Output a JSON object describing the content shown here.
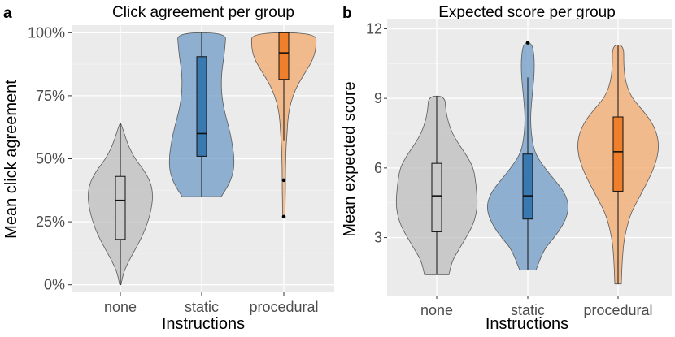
{
  "chart_data": [
    {
      "type": "violin",
      "panel_label": "a",
      "title": "Click agreement per group",
      "xlabel": "Instructions",
      "ylabel": "Mean click agreement",
      "ylim": [
        -0.03,
        1.03
      ],
      "yticks": [
        0,
        0.25,
        0.5,
        0.75,
        1.0
      ],
      "ytick_labels": [
        "0%",
        "25%",
        "50%",
        "75%",
        "100%"
      ],
      "categories": [
        "none",
        "static",
        "procedural"
      ],
      "groups": [
        {
          "name": "none",
          "color": "#bdbdbd",
          "box_color": "#c9c9c9",
          "box": {
            "min": 0.0,
            "q1": 0.18,
            "median": 0.335,
            "q3": 0.43,
            "max": 0.64
          },
          "outliers": [],
          "density": [
            [
              0.0,
              0.02
            ],
            [
              0.05,
              0.1
            ],
            [
              0.1,
              0.28
            ],
            [
              0.15,
              0.5
            ],
            [
              0.2,
              0.7
            ],
            [
              0.25,
              0.85
            ],
            [
              0.3,
              0.95
            ],
            [
              0.35,
              1.0
            ],
            [
              0.4,
              0.95
            ],
            [
              0.45,
              0.75
            ],
            [
              0.5,
              0.45
            ],
            [
              0.55,
              0.25
            ],
            [
              0.6,
              0.12
            ],
            [
              0.64,
              0.02
            ]
          ]
        },
        {
          "name": "static",
          "color": "#6f9bc6",
          "box_color": "#3a78b0",
          "box": {
            "min": 0.35,
            "q1": 0.51,
            "median": 0.6,
            "q3": 0.905,
            "max": 1.0
          },
          "outliers": [],
          "density": [
            [
              0.35,
              0.6
            ],
            [
              0.4,
              0.85
            ],
            [
              0.45,
              0.98
            ],
            [
              0.5,
              1.0
            ],
            [
              0.55,
              0.95
            ],
            [
              0.6,
              0.88
            ],
            [
              0.65,
              0.78
            ],
            [
              0.7,
              0.68
            ],
            [
              0.75,
              0.62
            ],
            [
              0.8,
              0.6
            ],
            [
              0.85,
              0.62
            ],
            [
              0.9,
              0.68
            ],
            [
              0.95,
              0.72
            ],
            [
              1.0,
              0.75
            ]
          ]
        },
        {
          "name": "procedural",
          "color": "#f2a96e",
          "box_color": "#f07f2c",
          "box": {
            "min": 0.57,
            "q1": 0.815,
            "median": 0.92,
            "q3": 1.0,
            "max": 1.0
          },
          "outliers": [
            0.415,
            0.27
          ],
          "density": [
            [
              0.27,
              0.04
            ],
            [
              0.32,
              0.04
            ],
            [
              0.38,
              0.05
            ],
            [
              0.45,
              0.05
            ],
            [
              0.5,
              0.06
            ],
            [
              0.55,
              0.07
            ],
            [
              0.6,
              0.1
            ],
            [
              0.65,
              0.12
            ],
            [
              0.7,
              0.17
            ],
            [
              0.75,
              0.28
            ],
            [
              0.8,
              0.45
            ],
            [
              0.85,
              0.7
            ],
            [
              0.9,
              0.92
            ],
            [
              0.95,
              1.0
            ],
            [
              1.0,
              0.98
            ]
          ]
        }
      ]
    },
    {
      "type": "violin",
      "panel_label": "b",
      "title": "Expected score per group",
      "xlabel": "Instructions",
      "ylabel": "Mean expected score",
      "ylim": [
        0.5,
        12.4
      ],
      "yticks": [
        3,
        6,
        9,
        12
      ],
      "ytick_labels": [
        "3",
        "6",
        "9",
        "12"
      ],
      "categories": [
        "none",
        "static",
        "procedural"
      ],
      "groups": [
        {
          "name": "none",
          "color": "#bdbdbd",
          "box_color": "#c9c9c9",
          "box": {
            "min": 1.4,
            "q1": 3.25,
            "median": 4.8,
            "q3": 6.2,
            "max": 9.1
          },
          "outliers": [],
          "density": [
            [
              1.4,
              0.3
            ],
            [
              2.0,
              0.38
            ],
            [
              2.5,
              0.55
            ],
            [
              3.0,
              0.72
            ],
            [
              3.5,
              0.88
            ],
            [
              4.0,
              0.97
            ],
            [
              4.5,
              1.0
            ],
            [
              5.0,
              0.98
            ],
            [
              5.5,
              0.95
            ],
            [
              6.0,
              0.9
            ],
            [
              6.5,
              0.75
            ],
            [
              7.0,
              0.55
            ],
            [
              7.5,
              0.38
            ],
            [
              8.0,
              0.28
            ],
            [
              8.5,
              0.22
            ],
            [
              9.1,
              0.2
            ]
          ]
        },
        {
          "name": "static",
          "color": "#6f9bc6",
          "box_color": "#3a78b0",
          "box": {
            "min": 1.6,
            "q1": 3.8,
            "median": 4.8,
            "q3": 6.6,
            "max": 9.9
          },
          "outliers": [
            11.4
          ],
          "density": [
            [
              1.6,
              0.2
            ],
            [
              2.5,
              0.4
            ],
            [
              3.0,
              0.65
            ],
            [
              3.5,
              0.85
            ],
            [
              4.0,
              0.98
            ],
            [
              4.5,
              1.0
            ],
            [
              5.0,
              0.88
            ],
            [
              5.5,
              0.65
            ],
            [
              6.0,
              0.42
            ],
            [
              6.5,
              0.22
            ],
            [
              7.0,
              0.12
            ],
            [
              8.0,
              0.06
            ],
            [
              9.0,
              0.1
            ],
            [
              10.0,
              0.16
            ],
            [
              10.8,
              0.16
            ],
            [
              11.4,
              0.1
            ]
          ]
        },
        {
          "name": "procedural",
          "color": "#f2a96e",
          "box_color": "#f07f2c",
          "box": {
            "min": 1.0,
            "q1": 5.0,
            "median": 6.7,
            "q3": 8.2,
            "max": 11.3
          },
          "outliers": [],
          "density": [
            [
              1.0,
              0.08
            ],
            [
              2.0,
              0.1
            ],
            [
              3.0,
              0.15
            ],
            [
              4.0,
              0.3
            ],
            [
              4.5,
              0.45
            ],
            [
              5.0,
              0.6
            ],
            [
              5.5,
              0.75
            ],
            [
              6.0,
              0.88
            ],
            [
              6.5,
              0.97
            ],
            [
              7.0,
              1.0
            ],
            [
              7.5,
              0.95
            ],
            [
              8.0,
              0.82
            ],
            [
              8.5,
              0.6
            ],
            [
              9.0,
              0.35
            ],
            [
              9.5,
              0.22
            ],
            [
              10.0,
              0.16
            ],
            [
              10.5,
              0.14
            ],
            [
              11.3,
              0.14
            ]
          ]
        }
      ]
    }
  ]
}
